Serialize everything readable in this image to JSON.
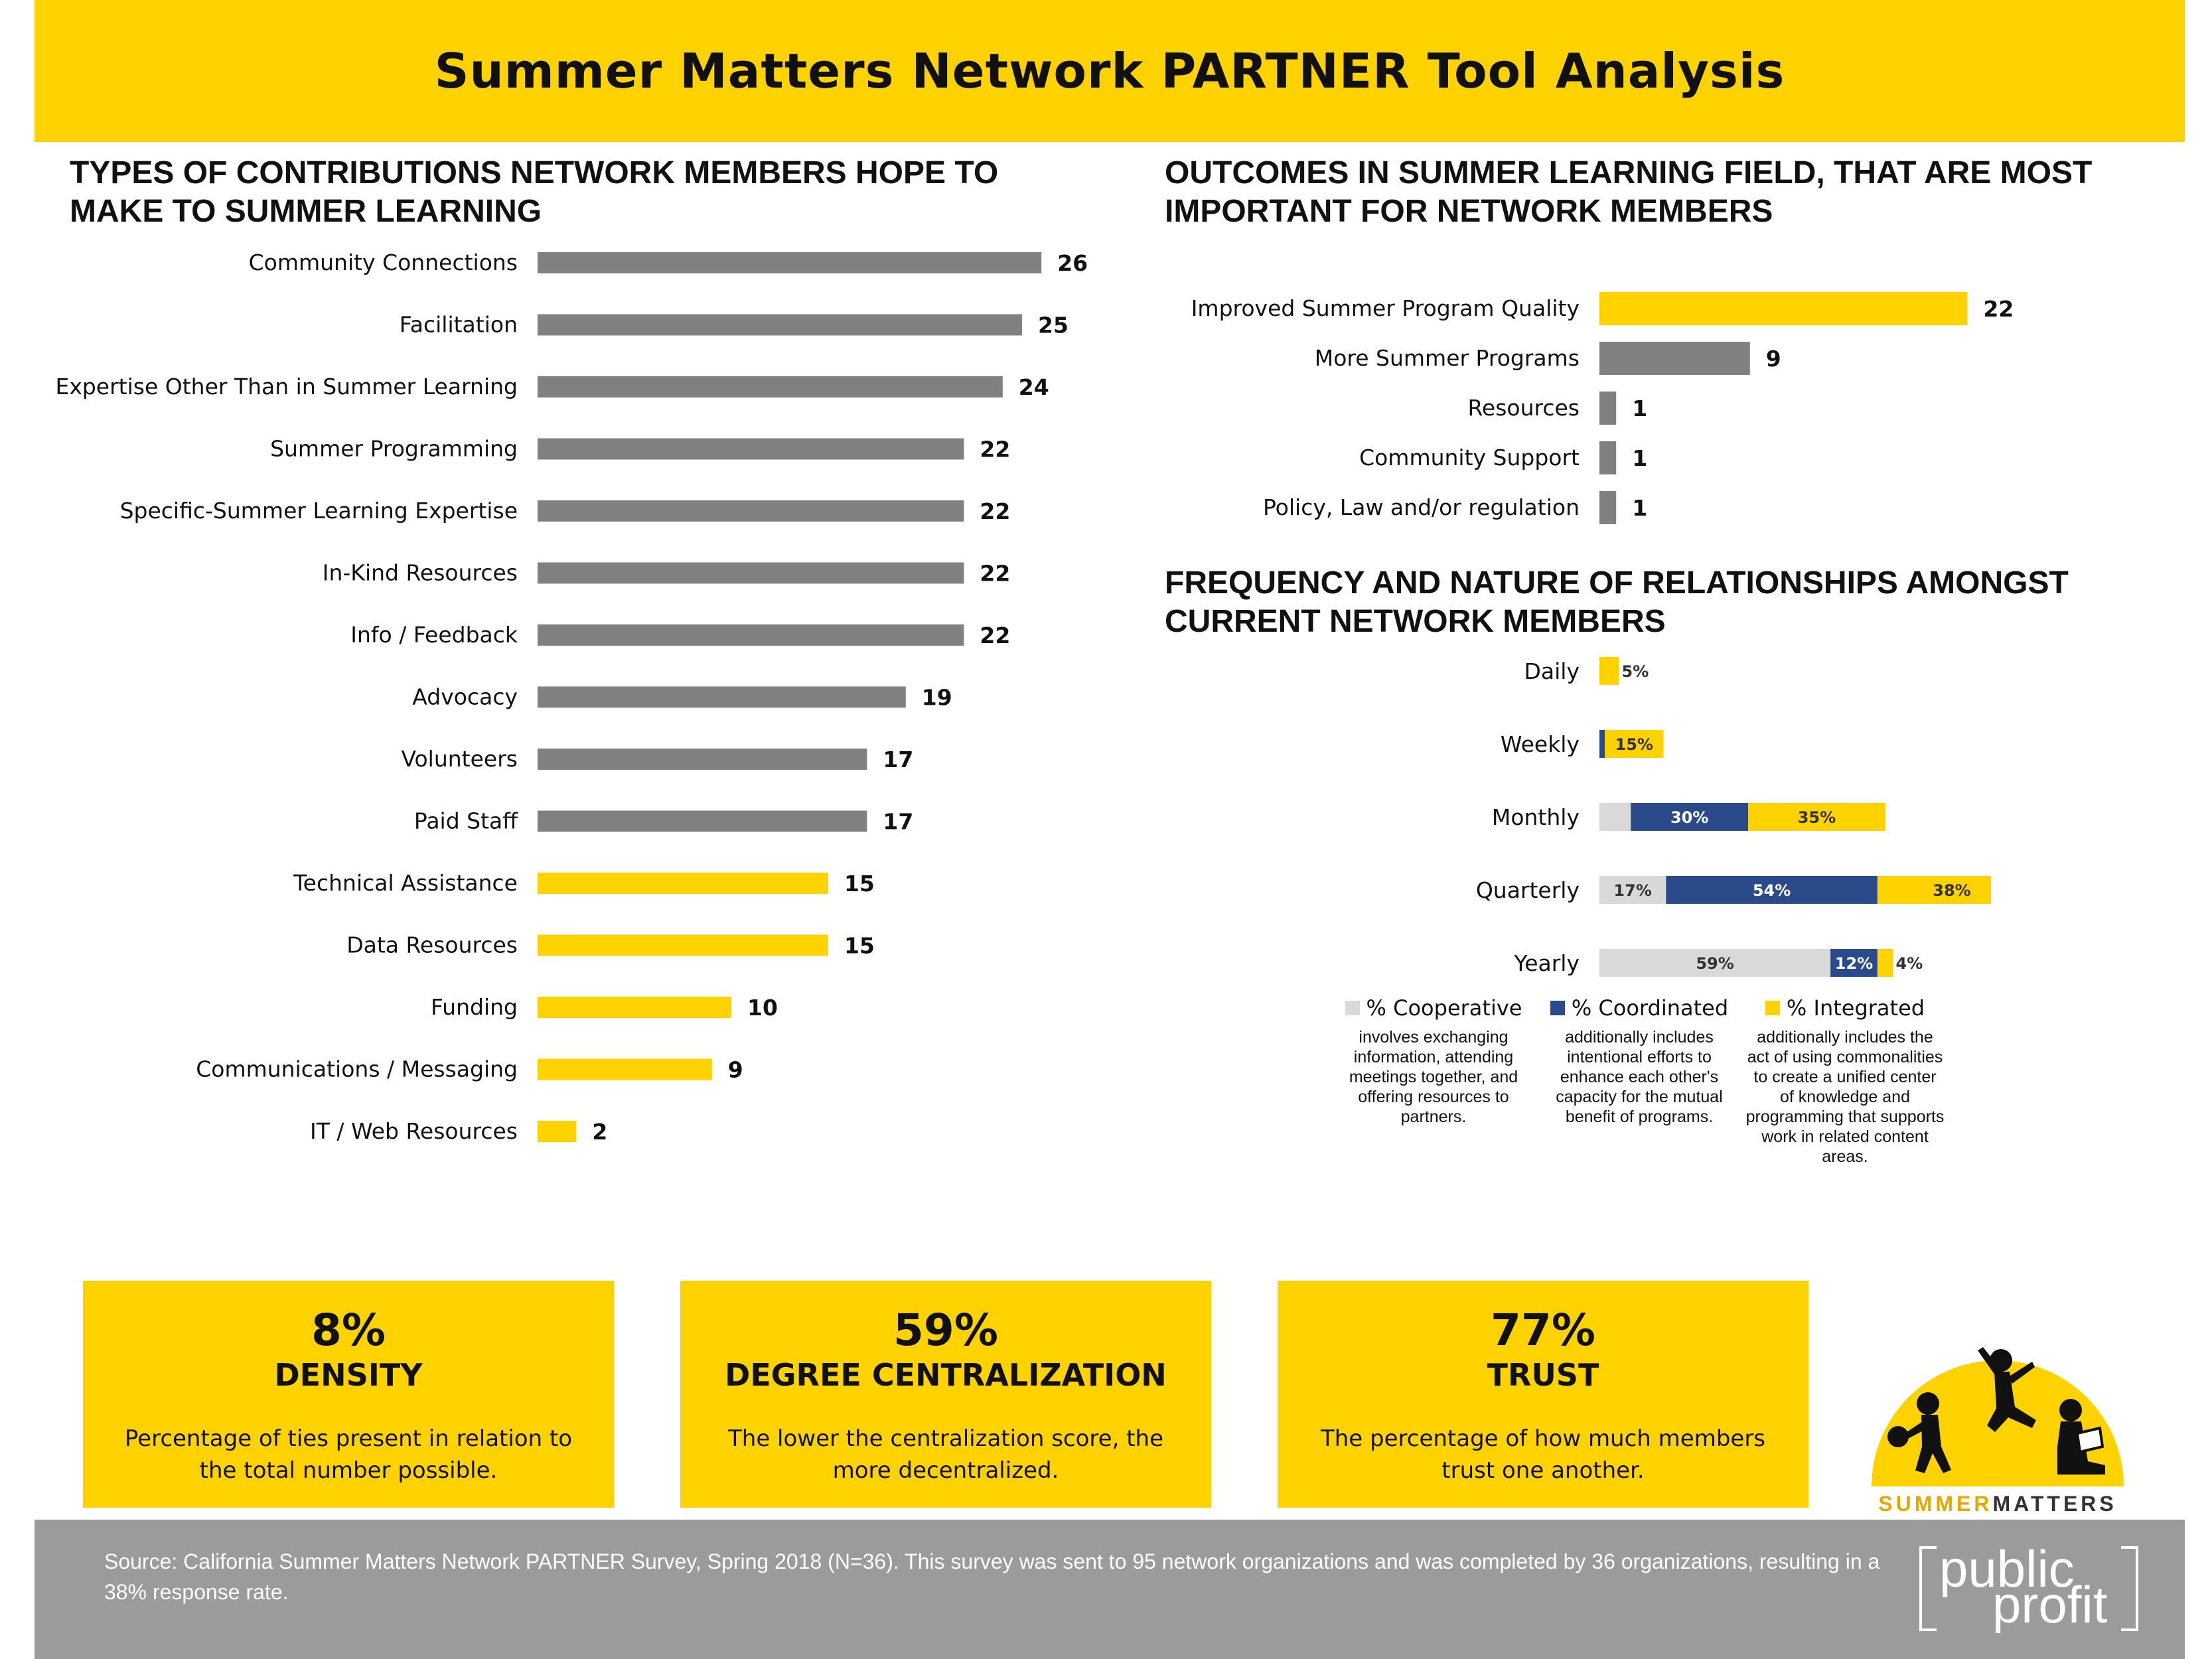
{
  "header": {
    "title": "Summer Matters Network PARTNER Tool Analysis"
  },
  "colors": {
    "gray": "#808080",
    "yellow": "#ffd200",
    "navy": "#2b4a8a",
    "light_gray": "#d9d9d9"
  },
  "chart_data": [
    {
      "type": "bar",
      "orientation": "horizontal",
      "title": "TYPES OF CONTRIBUTIONS NETWORK MEMBERS HOPE TO MAKE TO SUMMER LEARNING",
      "categories": [
        "Community Connections",
        "Facilitation",
        "Expertise Other Than in Summer Learning",
        "Summer Programming",
        "Specific-Summer Learning Expertise",
        "In-Kind Resources",
        "Info / Feedback",
        "Advocacy",
        "Volunteers",
        "Paid Staff",
        "Technical Assistance",
        "Data Resources",
        "Funding",
        "Communications / Messaging",
        "IT / Web Resources"
      ],
      "values": [
        26,
        25,
        24,
        22,
        22,
        22,
        22,
        19,
        17,
        17,
        15,
        15,
        10,
        9,
        2
      ],
      "bar_colors": [
        "gray",
        "gray",
        "gray",
        "gray",
        "gray",
        "gray",
        "gray",
        "gray",
        "gray",
        "gray",
        "yellow",
        "yellow",
        "yellow",
        "yellow",
        "yellow"
      ]
    },
    {
      "type": "bar",
      "orientation": "horizontal",
      "title": "OUTCOMES IN SUMMER LEARNING FIELD, THAT ARE MOST IMPORTANT FOR NETWORK MEMBERS",
      "categories": [
        "Improved Summer Program Quality",
        "More Summer Programs",
        "Resources",
        "Community Support",
        "Policy, Law and/or regulation"
      ],
      "values": [
        22,
        9,
        1,
        1,
        1
      ],
      "bar_colors": [
        "yellow",
        "gray",
        "gray",
        "gray",
        "gray"
      ]
    },
    {
      "type": "bar",
      "orientation": "horizontal",
      "stacked": true,
      "title": "FREQUENCY AND NATURE OF RELATIONSHIPS AMONGST CURRENT NETWORK MEMBERS",
      "categories": [
        "Daily",
        "Weekly",
        "Monthly",
        "Quarterly",
        "Yearly"
      ],
      "series": [
        {
          "name": "% Cooperative",
          "color": "light_gray",
          "values": [
            0,
            0,
            8,
            17,
            59
          ],
          "labels": [
            "",
            "",
            "8%",
            "17%",
            "59%"
          ]
        },
        {
          "name": "% Coordinated",
          "color": "navy",
          "values": [
            0,
            1,
            30,
            54,
            12
          ],
          "labels": [
            "",
            "",
            "30%",
            "54%",
            "12%"
          ]
        },
        {
          "name": "% Integrated",
          "color": "yellow",
          "values": [
            5,
            15,
            35,
            38,
            4
          ],
          "labels": [
            "5%",
            "15%",
            "35%",
            "38%",
            "4%"
          ]
        }
      ]
    }
  ],
  "legend": [
    {
      "name": "% Cooperative",
      "color": "#d9d9d9",
      "desc": "involves exchanging information, attending meetings together, and offering resources to partners."
    },
    {
      "name": "% Coordinated",
      "color": "#2b4a8a",
      "desc": "additionally includes intentional efforts to enhance each other's capacity for the mutual benefit of programs."
    },
    {
      "name": "% Integrated",
      "color": "#ffd200",
      "desc": "additionally includes the act of using commonalities to create a unified center of knowledge and programming that supports work in related content areas."
    }
  ],
  "kpis": [
    {
      "value": "8%",
      "label": "DENSITY",
      "desc": "Percentage of ties present in relation to the total number possible."
    },
    {
      "value": "59%",
      "label": "DEGREE CENTRALIZATION",
      "desc": "The lower the centralization score, the more decentralized."
    },
    {
      "value": "77%",
      "label": "TRUST",
      "desc": "The percentage of how much members trust one another."
    }
  ],
  "logo": {
    "word1": "SUMMER",
    "word2": "MATTERS",
    "icon": "children-playing-sun-icon"
  },
  "footer": {
    "source": "Source: California Summer Matters Network PARTNER Survey, Spring 2018 (N=36). This survey was sent to 95 network organizations and was completed by 36 organizations, resulting in a 38% response rate.",
    "logo_line1": "public",
    "logo_line2": "profit"
  }
}
